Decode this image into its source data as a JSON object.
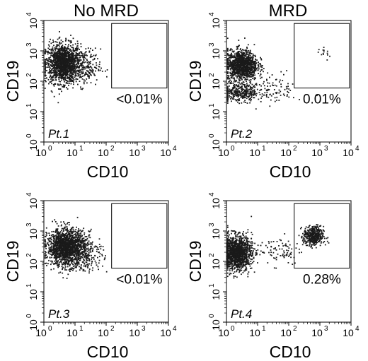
{
  "headers": {
    "left": "No MRD",
    "right": "MRD"
  },
  "colors": {
    "dots": "#1a1a1a",
    "axis": "#000000",
    "background": "#ffffff"
  },
  "chart_data": [
    {
      "type": "scatter",
      "panel_label": "Pt.1",
      "xlabel": "CD10",
      "ylabel": "CD19",
      "xscale": "log",
      "yscale": "log",
      "xlim": [
        1,
        10000
      ],
      "ylim": [
        1,
        10000
      ],
      "x_ticks": [
        1,
        10,
        100,
        1000,
        10000
      ],
      "y_ticks": [
        1,
        10,
        100,
        1000,
        10000
      ],
      "gate": {
        "x": [
          150,
          9000
        ],
        "y": [
          60,
          8000
        ],
        "label": "<0.01%"
      },
      "populations": [
        {
          "center": [
            4,
            400
          ],
          "spread": [
            0.28,
            0.32
          ],
          "n": 1500
        },
        {
          "center": [
            20,
            300
          ],
          "spread": [
            0.25,
            0.3
          ],
          "n": 200
        }
      ]
    },
    {
      "type": "scatter",
      "panel_label": "Pt.2",
      "xlabel": "CD10",
      "ylabel": "CD19",
      "xscale": "log",
      "yscale": "log",
      "xlim": [
        1,
        10000
      ],
      "ylim": [
        1,
        10000
      ],
      "x_ticks": [
        1,
        10,
        100,
        1000,
        10000
      ],
      "y_ticks": [
        1,
        10,
        100,
        1000,
        10000
      ],
      "gate": {
        "x": [
          150,
          9000
        ],
        "y": [
          60,
          8000
        ],
        "label": "0.01%"
      },
      "populations": [
        {
          "center": [
            3,
            350
          ],
          "spread": [
            0.25,
            0.25
          ],
          "n": 1200
        },
        {
          "center": [
            3,
            45
          ],
          "spread": [
            0.35,
            0.15
          ],
          "n": 350
        },
        {
          "center": [
            40,
            60
          ],
          "spread": [
            0.3,
            0.25
          ],
          "n": 70
        },
        {
          "center": [
            1500,
            800
          ],
          "spread": [
            0.1,
            0.1
          ],
          "n": 14
        }
      ]
    },
    {
      "type": "scatter",
      "panel_label": "Pt.3",
      "xlabel": "CD10",
      "ylabel": "CD19",
      "xscale": "log",
      "yscale": "log",
      "xlim": [
        1,
        10000
      ],
      "ylim": [
        1,
        10000
      ],
      "x_ticks": [
        1,
        10,
        100,
        1000,
        10000
      ],
      "y_ticks": [
        1,
        10,
        100,
        1000,
        10000
      ],
      "gate": {
        "x": [
          150,
          9000
        ],
        "y": [
          60,
          8000
        ],
        "label": "<0.01%"
      },
      "populations": [
        {
          "center": [
            5,
            300
          ],
          "spread": [
            0.3,
            0.3
          ],
          "n": 1600
        },
        {
          "center": [
            25,
            200
          ],
          "spread": [
            0.25,
            0.3
          ],
          "n": 200
        }
      ]
    },
    {
      "type": "scatter",
      "panel_label": "Pt.4",
      "xlabel": "CD10",
      "ylabel": "CD19",
      "xscale": "log",
      "yscale": "log",
      "xlim": [
        1,
        10000
      ],
      "ylim": [
        1,
        10000
      ],
      "x_ticks": [
        1,
        10,
        100,
        1000,
        10000
      ],
      "y_ticks": [
        1,
        10,
        100,
        1000,
        10000
      ],
      "gate": {
        "x": [
          150,
          9000
        ],
        "y": [
          60,
          8000
        ],
        "label": "0.28%"
      },
      "populations": [
        {
          "center": [
            2,
            200
          ],
          "spread": [
            0.25,
            0.28
          ],
          "n": 1300
        },
        {
          "center": [
            600,
            700
          ],
          "spread": [
            0.16,
            0.16
          ],
          "n": 450
        },
        {
          "center": [
            50,
            250
          ],
          "spread": [
            0.35,
            0.25
          ],
          "n": 80
        }
      ]
    }
  ]
}
